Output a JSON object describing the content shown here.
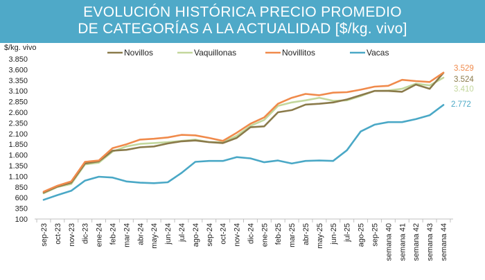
{
  "header": {
    "title_line1": "EVOLUCIÓN HISTÓRICA PRECIO PROMEDIO",
    "title_line2": "DE CATEGORÍAS A LA ACTUALIDAD [$/kg. vivo]"
  },
  "chart_data": {
    "type": "line",
    "title": "EVOLUCIÓN HISTÓRICA PRECIO PROMEDIO DE CATEGORÍAS A LA ACTUALIDAD [$/kg. vivo]",
    "ylabel": "$/kg. vivo",
    "xlabel": "",
    "ylim": [
      100,
      3850
    ],
    "yticks": [
      "3.850",
      "3.600",
      "3.350",
      "3.100",
      "2.850",
      "2.600",
      "2.350",
      "2.100",
      "1.850",
      "1.600",
      "1.350",
      "1.100",
      "850",
      "600",
      "350",
      "100"
    ],
    "ytick_values": [
      3850,
      3600,
      3350,
      3100,
      2850,
      2600,
      2350,
      2100,
      1850,
      1600,
      1350,
      1100,
      850,
      600,
      350,
      100
    ],
    "categories": [
      "sep-23",
      "oct-23",
      "nov-23",
      "dic-23",
      "ene-24",
      "feb-24",
      "mar-24",
      "abr-24",
      "may-24",
      "jun-24",
      "jul-24",
      "ago-24",
      "sep-24",
      "oct-24",
      "nov-24",
      "dic-24",
      "ene-25",
      "feb-25",
      "mar-25",
      "abr-25",
      "may-25",
      "jun-25",
      "jul-25",
      "ago-25",
      "sep-25",
      "semana 40",
      "semana 41",
      "semana 42",
      "semana 43",
      "semana 44"
    ],
    "legend_position": "top",
    "series": [
      {
        "name": "Novillos",
        "color": "#8a7a4a",
        "end_label": "3.524",
        "values": [
          720,
          860,
          950,
          1400,
          1450,
          1700,
          1720,
          1780,
          1800,
          1870,
          1920,
          1940,
          1900,
          1880,
          2000,
          2250,
          2270,
          2600,
          2650,
          2780,
          2800,
          2830,
          2900,
          3000,
          3100,
          3100,
          3080,
          3250,
          3150,
          3524
        ]
      },
      {
        "name": "Vaquillonas",
        "color": "#c3d79c",
        "end_label": "3.410",
        "values": [
          700,
          850,
          920,
          1380,
          1420,
          1680,
          1800,
          1860,
          1880,
          1900,
          1930,
          1960,
          1900,
          1900,
          2050,
          2280,
          2420,
          2750,
          2830,
          2880,
          2940,
          2870,
          2880,
          2980,
          3100,
          3110,
          3150,
          3270,
          3230,
          3410
        ]
      },
      {
        "name": "Novillitos",
        "color": "#f08a4b",
        "end_label": "3.529",
        "values": [
          740,
          880,
          980,
          1440,
          1470,
          1760,
          1850,
          1960,
          1980,
          2010,
          2070,
          2060,
          2000,
          1930,
          2120,
          2330,
          2480,
          2800,
          2940,
          3030,
          3000,
          3060,
          3070,
          3130,
          3200,
          3220,
          3360,
          3330,
          3310,
          3529
        ]
      },
      {
        "name": "Vacas",
        "color": "#4aa8c6",
        "end_label": "2.772",
        "values": [
          550,
          660,
          760,
          1000,
          1090,
          1070,
          980,
          950,
          940,
          960,
          1180,
          1440,
          1460,
          1460,
          1550,
          1520,
          1430,
          1470,
          1400,
          1460,
          1470,
          1460,
          1710,
          2150,
          2310,
          2370,
          2370,
          2440,
          2530,
          2772
        ]
      }
    ]
  }
}
